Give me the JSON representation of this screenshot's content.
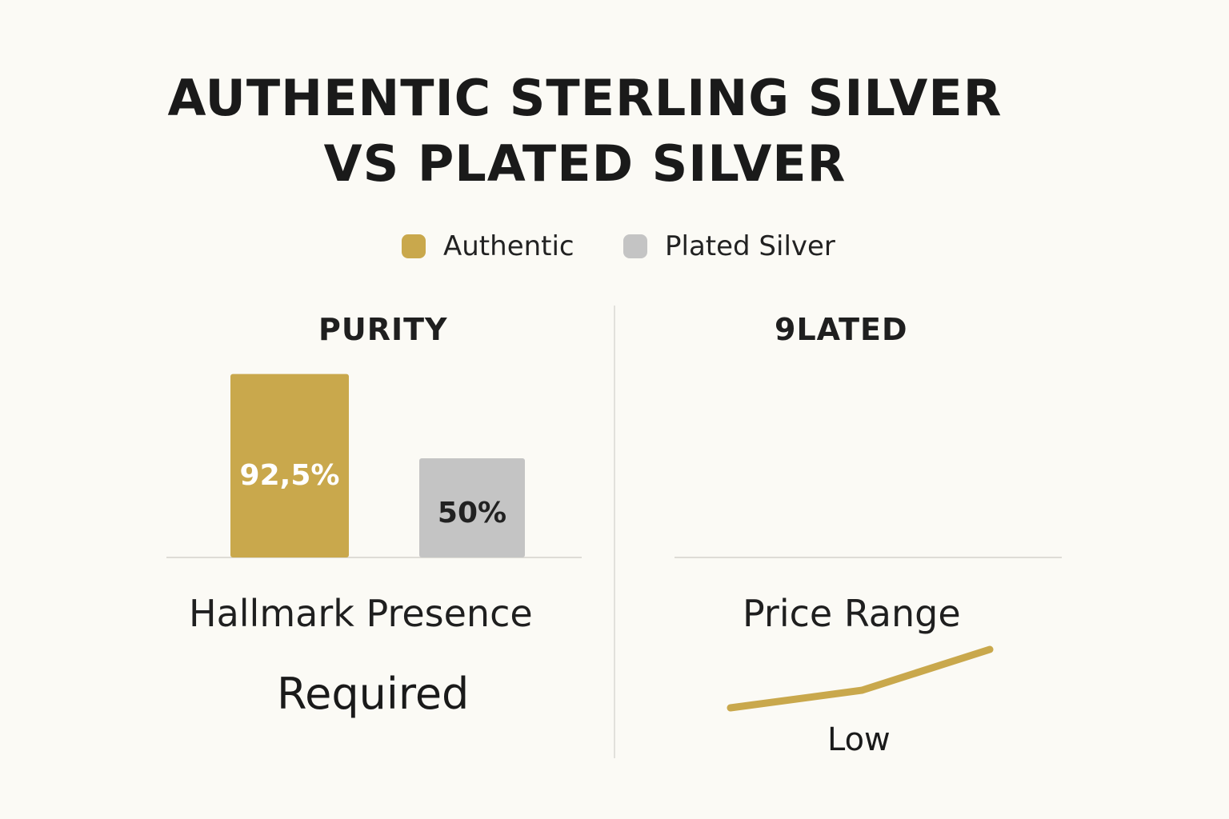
{
  "title_line1": "AUTHENTIC STERLING SILVER",
  "title_line2": "VS PLATED SILVER",
  "legend": [
    {
      "label": "Authentic",
      "color": "#c9a84c"
    },
    {
      "label": "Plated Silver",
      "color": "#c4c4c4"
    }
  ],
  "chart_data": [
    {
      "type": "bar",
      "title": "PURITY",
      "categories": [
        "Authentic",
        "Plated Silver"
      ],
      "values": [
        92.5,
        50
      ],
      "data_labels": [
        "92,5%",
        "50%"
      ],
      "colors": [
        "#c9a84c",
        "#c4c4c4"
      ],
      "label_colors": [
        "#ffffff",
        "#222222"
      ],
      "ylim": [
        0,
        100
      ],
      "grid": false
    },
    {
      "type": "line",
      "title": "9LATED",
      "grid": false
    }
  ],
  "hallmark": {
    "label": "Hallmark Presence",
    "value": "Required"
  },
  "price": {
    "label": "Price Range",
    "value": "Low",
    "trend": [
      0,
      0.3,
      1
    ],
    "color": "#c9a84c"
  }
}
